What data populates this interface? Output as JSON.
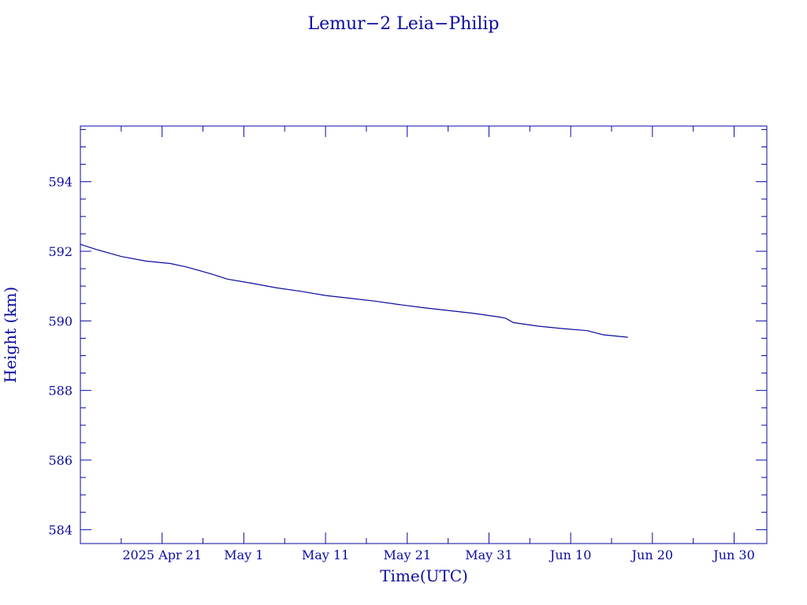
{
  "chart_data": {
    "type": "line",
    "title": "Lemur−2 Leia−Philip",
    "xlabel": "Time(UTC)",
    "ylabel": "Height (km)",
    "x_range": [
      "2025-04-11",
      "2025-07-04"
    ],
    "ylim": [
      583.6,
      595.6
    ],
    "x_ticks": [
      {
        "date": "2025-04-21",
        "label": "2025 Apr 21"
      },
      {
        "date": "2025-05-01",
        "label": "May  1"
      },
      {
        "date": "2025-05-11",
        "label": "May 11"
      },
      {
        "date": "2025-05-21",
        "label": "May 21"
      },
      {
        "date": "2025-05-31",
        "label": "May 31"
      },
      {
        "date": "2025-06-10",
        "label": "Jun 10"
      },
      {
        "date": "2025-06-20",
        "label": "Jun 20"
      },
      {
        "date": "2025-06-30",
        "label": "Jun 30"
      }
    ],
    "y_ticks": [
      584,
      586,
      588,
      590,
      592,
      594
    ],
    "grid": false,
    "legend": "none",
    "color": "#0a0aa0",
    "series": [
      {
        "x": [
          "2025-04-11",
          "2025-04-13",
          "2025-04-16",
          "2025-04-19",
          "2025-04-22",
          "2025-04-24",
          "2025-04-27",
          "2025-04-29",
          "2025-05-02",
          "2025-05-05",
          "2025-05-08",
          "2025-05-11",
          "2025-05-14",
          "2025-05-17",
          "2025-05-20",
          "2025-05-23",
          "2025-05-26",
          "2025-05-29",
          "2025-06-01",
          "2025-06-02",
          "2025-06-03",
          "2025-06-06",
          "2025-06-09",
          "2025-06-12",
          "2025-06-14",
          "2025-06-17"
        ],
        "y": [
          592.2,
          592.05,
          591.85,
          591.72,
          591.65,
          591.55,
          591.35,
          591.2,
          591.08,
          590.95,
          590.85,
          590.73,
          590.65,
          590.57,
          590.47,
          590.38,
          590.3,
          590.22,
          590.12,
          590.08,
          589.95,
          589.85,
          589.78,
          589.72,
          589.6,
          589.53
        ]
      }
    ]
  }
}
